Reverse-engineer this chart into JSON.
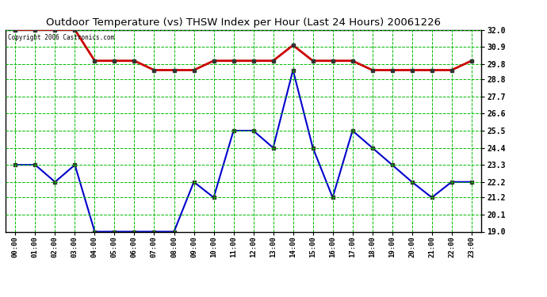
{
  "title": "Outdoor Temperature (vs) THSW Index per Hour (Last 24 Hours) 20061226",
  "copyright": "Copyright 2006 Castronics.com",
  "x_labels": [
    "00:00",
    "01:00",
    "02:00",
    "03:00",
    "04:00",
    "05:00",
    "06:00",
    "07:00",
    "08:00",
    "09:00",
    "10:00",
    "11:00",
    "12:00",
    "13:00",
    "14:00",
    "15:00",
    "16:00",
    "17:00",
    "18:00",
    "19:00",
    "20:00",
    "21:00",
    "22:00",
    "23:00"
  ],
  "temp_data": [
    23.3,
    23.3,
    22.2,
    23.3,
    19.0,
    19.0,
    19.0,
    19.0,
    19.0,
    22.2,
    21.2,
    25.5,
    25.5,
    24.4,
    29.4,
    24.4,
    21.2,
    25.5,
    24.4,
    23.3,
    22.2,
    21.2,
    22.2,
    22.2
  ],
  "thsw_data": [
    32.0,
    32.0,
    32.0,
    32.0,
    30.0,
    30.0,
    30.0,
    29.4,
    29.4,
    29.4,
    30.0,
    30.0,
    30.0,
    30.0,
    31.0,
    30.0,
    30.0,
    30.0,
    29.4,
    29.4,
    29.4,
    29.4,
    29.4,
    30.0
  ],
  "temp_color": "#0000cc",
  "thsw_color": "#cc0000",
  "bg_color": "#ffffff",
  "grid_color": "#00bb00",
  "ylim_min": 19.0,
  "ylim_max": 32.0,
  "yticks": [
    19.0,
    20.1,
    21.2,
    22.2,
    23.3,
    24.4,
    25.5,
    26.6,
    27.7,
    28.8,
    29.8,
    30.9,
    32.0
  ]
}
